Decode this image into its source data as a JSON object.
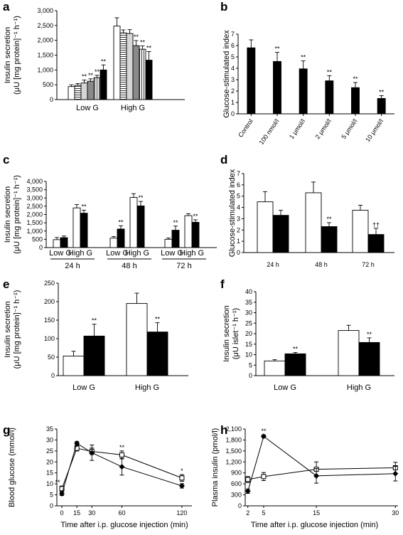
{
  "chart_data": [
    {
      "panel": "a",
      "type": "bar",
      "ylabel": [
        "Insulin secretion",
        "(μU [mg protein]⁻¹ h⁻¹)"
      ],
      "ylim": [
        0,
        3000
      ],
      "yticks": [
        0,
        500,
        1000,
        1500,
        2000,
        2500,
        3000
      ],
      "ytick_labels": [
        "0",
        "500",
        "1,000",
        "1,500",
        "2,000",
        "2,500",
        "3,000"
      ],
      "groups": [
        "Low G",
        "High G"
      ],
      "series": [
        {
          "fill": "#ffffff",
          "pattern": "none",
          "values": [
            440,
            2480
          ],
          "errors": [
            60,
            280
          ],
          "stars": [
            "",
            ""
          ]
        },
        {
          "fill": "#ffffff",
          "pattern": "hlines",
          "values": [
            480,
            2250
          ],
          "errors": [
            60,
            100
          ],
          "stars": [
            "",
            ""
          ]
        },
        {
          "fill": "#d6d6d6",
          "pattern": "none",
          "values": [
            560,
            2230
          ],
          "errors": [
            100,
            130
          ],
          "stars": [
            "**",
            ""
          ]
        },
        {
          "fill": "#8a8a8a",
          "pattern": "none",
          "values": [
            620,
            1820
          ],
          "errors": [
            80,
            170
          ],
          "stars": [
            "**",
            "**"
          ]
        },
        {
          "fill": "#ffffff",
          "pattern": "vlines",
          "values": [
            740,
            1700
          ],
          "errors": [
            80,
            110
          ],
          "stars": [
            "**",
            "**"
          ]
        },
        {
          "fill": "#000000",
          "pattern": "none",
          "values": [
            1000,
            1330
          ],
          "errors": [
            170,
            290
          ],
          "stars": [
            "**",
            "**"
          ]
        }
      ]
    },
    {
      "panel": "b",
      "type": "bar",
      "ylabel": "Glucose-stimulated index",
      "ylim": [
        0,
        7
      ],
      "yticks": [
        0,
        1,
        2,
        3,
        4,
        5,
        6,
        7
      ],
      "categories": [
        "Control",
        "100 nmol/l",
        "1 μmol/l",
        "2 μmol/l",
        "5 μmol/l",
        "10 μmol/l"
      ],
      "values": [
        5.8,
        4.6,
        3.95,
        2.9,
        2.3,
        1.35
      ],
      "errors": [
        0.7,
        0.8,
        0.7,
        0.45,
        0.45,
        0.25
      ],
      "stars": [
        "",
        "**",
        "**",
        "**",
        "**",
        "**"
      ]
    },
    {
      "panel": "c",
      "type": "bar",
      "ylabel": [
        "Insulin secretion",
        "(μU [mg protein]⁻¹ h⁻¹)"
      ],
      "ylim": [
        0,
        4000
      ],
      "yticks": [
        0,
        500,
        1000,
        1500,
        2000,
        2500,
        3000,
        3500,
        4000
      ],
      "ytick_labels": [
        "0",
        "500",
        "1,000",
        "1,500",
        "2,000",
        "2,500",
        "3,000",
        "3,500",
        "4,000"
      ],
      "timepoints": [
        "24 h",
        "48 h",
        "72 h"
      ],
      "conditions": [
        "Low G",
        "High G"
      ],
      "control": {
        "values": [
          [
            480,
            2400
          ],
          [
            570,
            3030
          ],
          [
            500,
            1930
          ]
        ],
        "errors": [
          [
            130,
            200
          ],
          [
            100,
            230
          ],
          [
            80,
            120
          ]
        ]
      },
      "treated": {
        "values": [
          [
            600,
            2080
          ],
          [
            1120,
            2520
          ],
          [
            1050,
            1530
          ]
        ],
        "errors": [
          [
            100,
            180
          ],
          [
            200,
            270
          ],
          [
            250,
            150
          ]
        ],
        "stars": [
          [
            "",
            "**"
          ],
          [
            "**",
            "**"
          ],
          [
            "**",
            "**"
          ]
        ]
      }
    },
    {
      "panel": "d",
      "type": "bar",
      "ylabel": "Glucose-stimulated index",
      "ylim": [
        0,
        7
      ],
      "yticks": [
        0,
        1,
        2,
        3,
        4,
        5,
        6,
        7
      ],
      "categories": [
        "24 h",
        "48 h",
        "72 h"
      ],
      "control": {
        "values": [
          4.5,
          5.3,
          3.75
        ],
        "errors": [
          0.9,
          0.95,
          0.45
        ]
      },
      "treated": {
        "values": [
          3.3,
          2.3,
          1.6
        ],
        "errors": [
          0.45,
          0.35,
          0.55
        ],
        "stars": [
          "",
          "**",
          "††"
        ]
      }
    },
    {
      "panel": "e",
      "type": "bar",
      "ylabel": [
        "Insulin secretion",
        "(μU [mg protein]⁻¹ h⁻¹)"
      ],
      "ylim": [
        0,
        250
      ],
      "yticks": [
        0,
        50,
        100,
        150,
        200,
        250
      ],
      "categories": [
        "Low G",
        "High G"
      ],
      "control": {
        "values": [
          53,
          195
        ],
        "errors": [
          13,
          28
        ]
      },
      "treated": {
        "values": [
          107,
          118
        ],
        "errors": [
          32,
          25
        ],
        "stars": [
          "**",
          "**"
        ]
      }
    },
    {
      "panel": "f",
      "type": "bar",
      "ylabel": [
        "Insulin secretion",
        "(μU islet⁻¹ h⁻¹)"
      ],
      "ylim": [
        0,
        40
      ],
      "yticks": [
        0,
        5,
        10,
        15,
        20,
        25,
        30,
        35,
        40
      ],
      "categories": [
        "Low G",
        "High G"
      ],
      "control": {
        "values": [
          7,
          21.5
        ],
        "errors": [
          0.6,
          2.5
        ]
      },
      "treated": {
        "values": [
          10.4,
          15.8
        ],
        "errors": [
          0.6,
          2.2
        ],
        "stars": [
          "**",
          "**"
        ]
      }
    },
    {
      "panel": "g",
      "type": "line",
      "xlabel": "Time after i.p. glucose injection (min)",
      "ylabel": "Blood glucose (mmol/l)",
      "xlim": [
        -5,
        130
      ],
      "xticks": [
        0,
        15,
        30,
        60,
        120
      ],
      "ylim": [
        0,
        35
      ],
      "yticks": [
        0,
        5,
        10,
        15,
        20,
        25,
        30,
        35
      ],
      "series": [
        {
          "marker": "square-open",
          "x": [
            0,
            15,
            30,
            60,
            120
          ],
          "y": [
            7.8,
            26.2,
            24.8,
            23.2,
            12.7
          ],
          "errors": [
            1.2,
            1.2,
            1.5,
            1.8,
            1.5
          ],
          "stars": [
            "**",
            "",
            "",
            "**",
            "*"
          ]
        },
        {
          "marker": "diamond-filled",
          "x": [
            0,
            15,
            30,
            60,
            120
          ],
          "y": [
            5.5,
            28.5,
            24.2,
            17.8,
            9.1
          ],
          "errors": [
            0.8,
            0.8,
            3.5,
            3.8,
            1.0
          ],
          "stars": [
            "",
            "",
            "",
            "",
            ""
          ]
        }
      ]
    },
    {
      "panel": "h",
      "type": "line",
      "xlabel": "Time after i.p. glucose injection (min)",
      "ylabel": "Plasma insulin (pmol/l)",
      "xlim": [
        1.5,
        30.5
      ],
      "xticks": [
        2,
        5,
        15,
        30
      ],
      "ylim": [
        0,
        2100
      ],
      "yticks": [
        0,
        300,
        600,
        900,
        1200,
        1500,
        1800,
        2100
      ],
      "ytick_labels": [
        "0",
        "300",
        "600",
        "900",
        "1,200",
        "1,500",
        "1,800",
        "2,100"
      ],
      "series": [
        {
          "marker": "square-open",
          "x": [
            2,
            5,
            15,
            30
          ],
          "y": [
            720,
            800,
            1000,
            1040
          ],
          "errors": [
            80,
            110,
            200,
            150
          ],
          "stars": [
            "",
            "",
            "",
            ""
          ]
        },
        {
          "marker": "diamond-filled",
          "x": [
            2,
            5,
            15,
            30
          ],
          "y": [
            400,
            1900,
            820,
            880
          ],
          "errors": [
            60,
            40,
            200,
            200
          ],
          "stars": [
            "",
            "**",
            "",
            ""
          ]
        }
      ]
    }
  ]
}
